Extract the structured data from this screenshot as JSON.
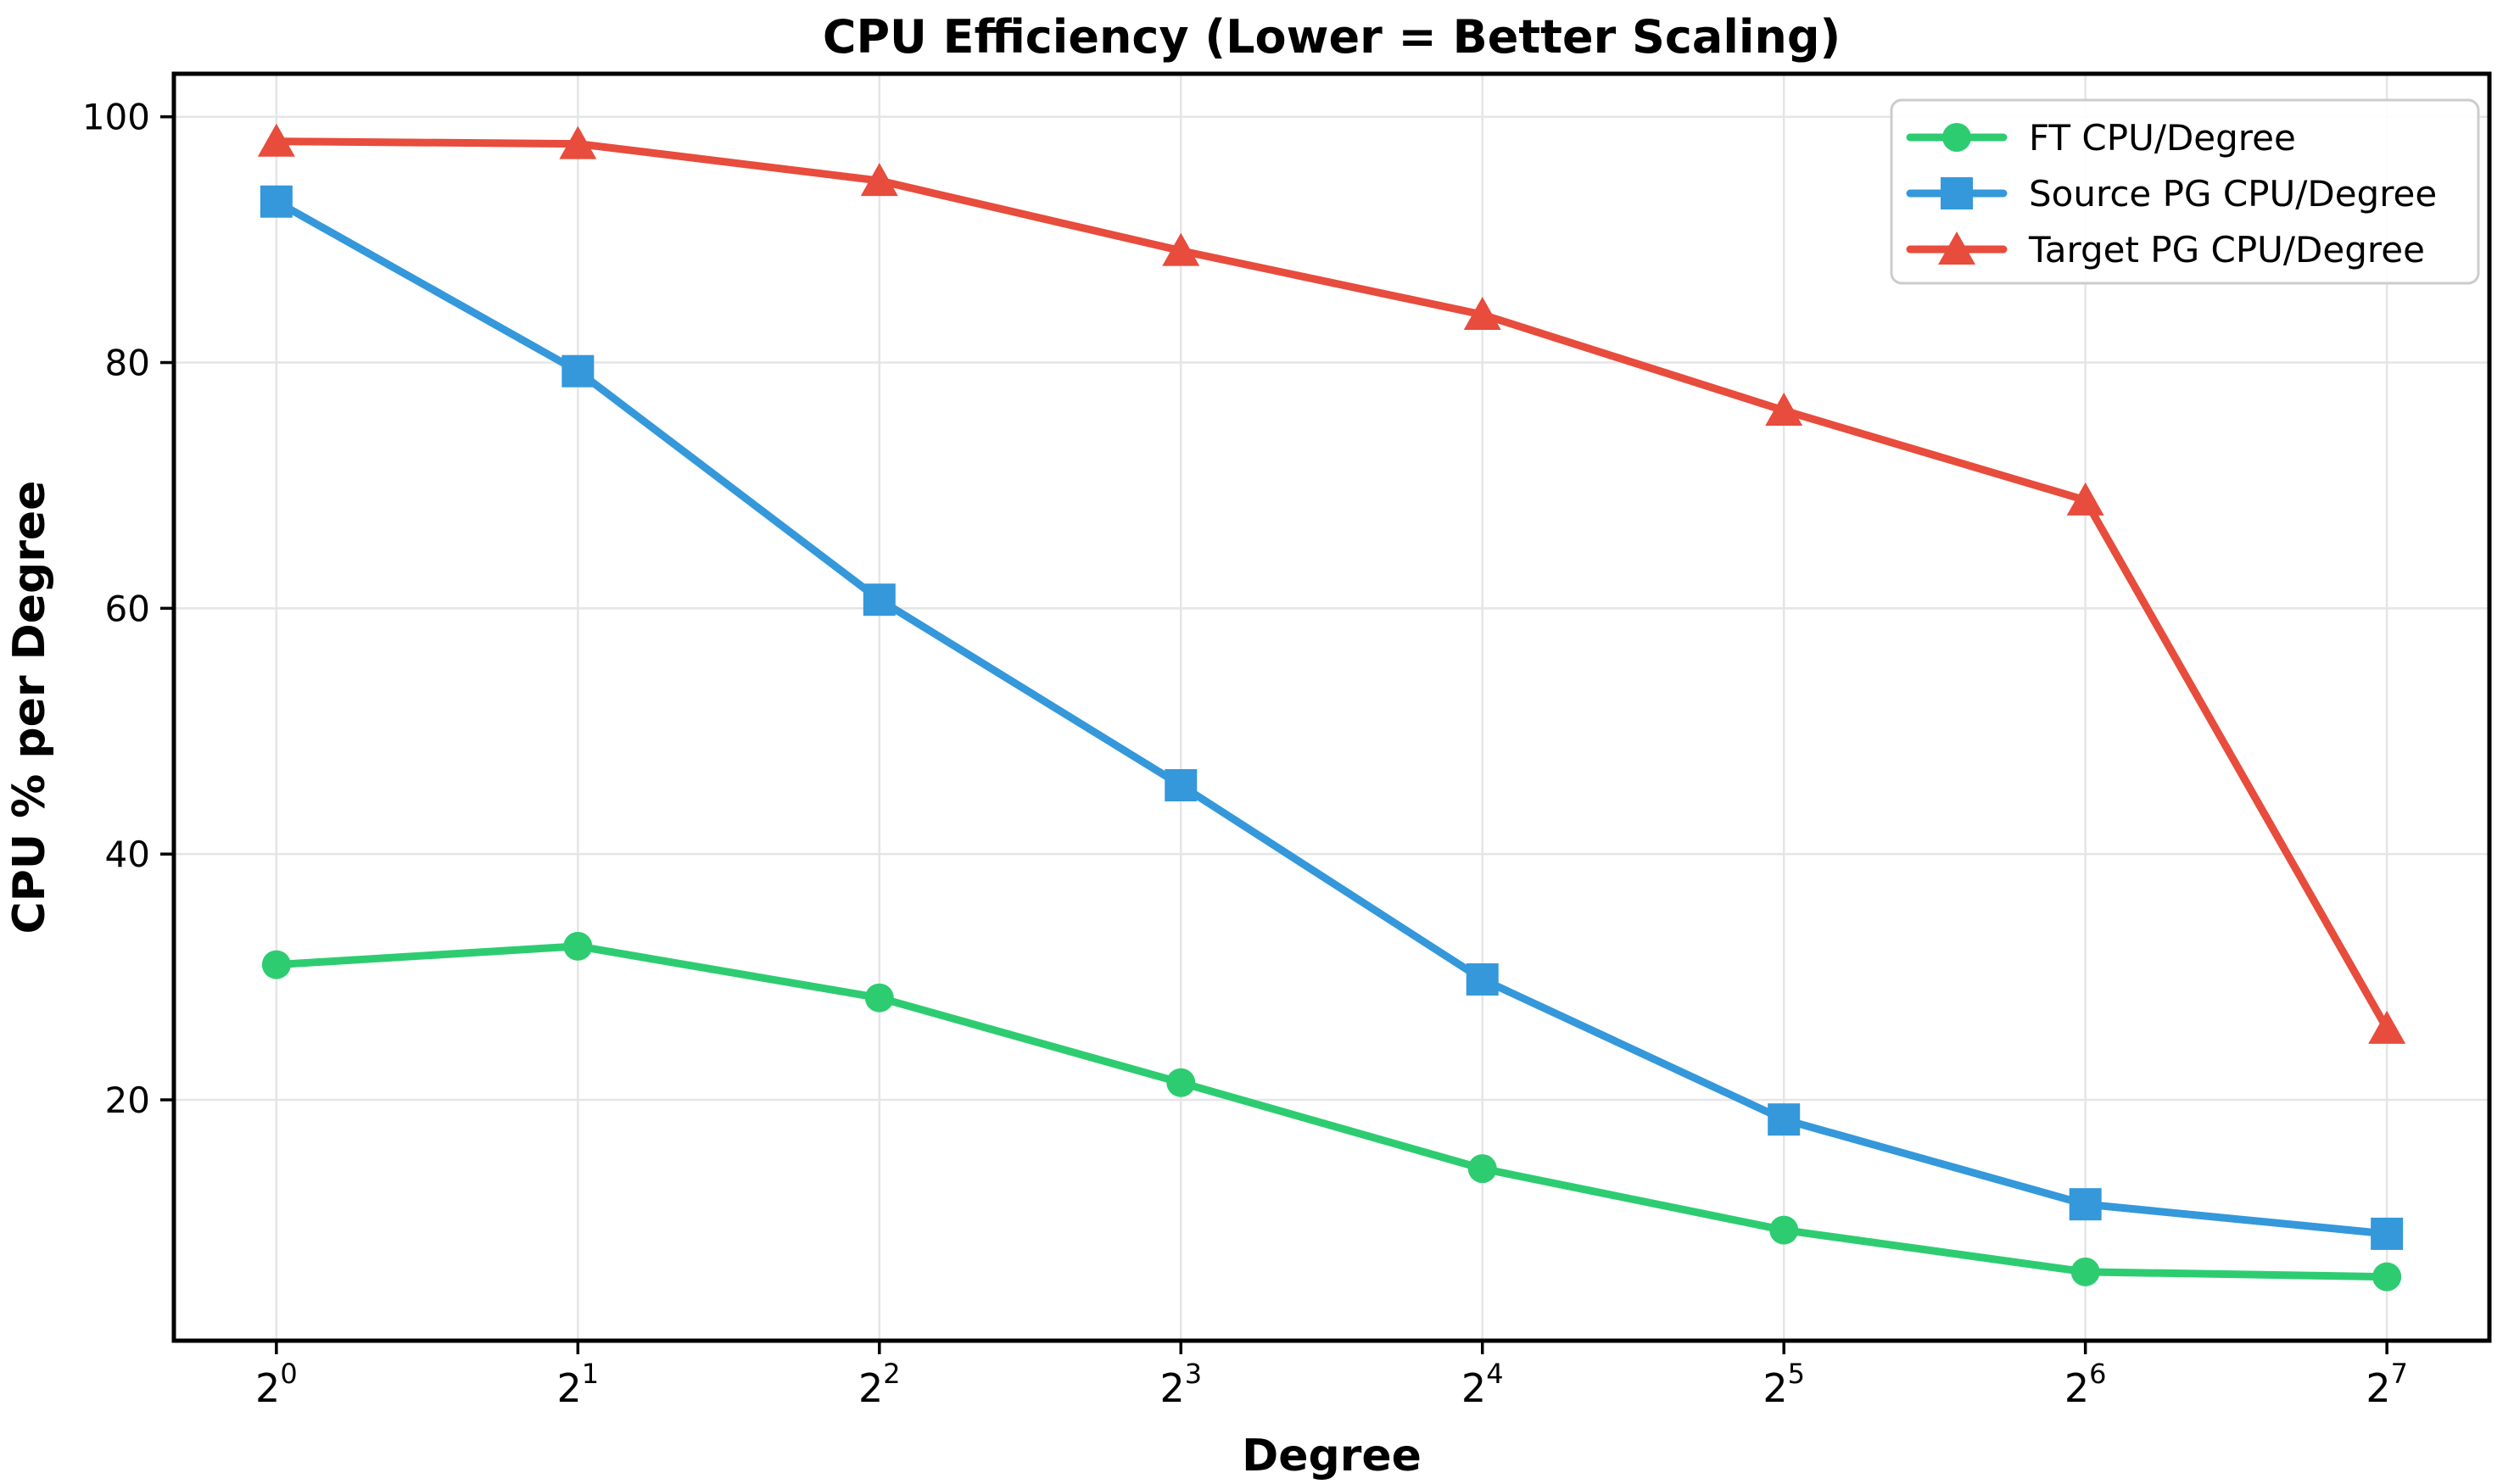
{
  "chart_data": {
    "type": "line",
    "title": "CPU Efficiency (Lower = Better Scaling)",
    "xlabel": "Degree",
    "ylabel": "CPU % per Degree",
    "x_tick_base": "2",
    "x_tick_exponents": [
      0,
      1,
      2,
      3,
      4,
      5,
      6,
      7
    ],
    "x_values": [
      1,
      2,
      4,
      8,
      16,
      32,
      64,
      128
    ],
    "y_ticks": [
      20,
      40,
      60,
      80,
      100
    ],
    "ylim": [
      0.4,
      103.5
    ],
    "xlim_index": [
      -0.34,
      7.34
    ],
    "grid": true,
    "legend_position": "upper right",
    "series": [
      {
        "name": "FT CPU/Degree",
        "color": "#2ecc71",
        "marker": "circle",
        "values": [
          31.0,
          32.5,
          28.3,
          21.4,
          14.4,
          9.4,
          6.0,
          5.6
        ]
      },
      {
        "name": "Source PG CPU/Degree",
        "color": "#3498db",
        "marker": "square",
        "values": [
          93.1,
          79.3,
          60.7,
          45.6,
          29.8,
          18.4,
          11.5,
          9.1
        ]
      },
      {
        "name": "Target PG CPU/Degree",
        "color": "#e74c3c",
        "marker": "triangle",
        "values": [
          98.0,
          97.8,
          94.8,
          89.1,
          83.9,
          76.1,
          68.8,
          25.8
        ]
      }
    ],
    "colors": {
      "background": "#ffffff",
      "grid": "#e5e5e5",
      "spine": "#000000",
      "tick": "#000000",
      "legend_border": "#cccccc",
      "legend_background": "#ffffff",
      "text": "#000000"
    }
  }
}
